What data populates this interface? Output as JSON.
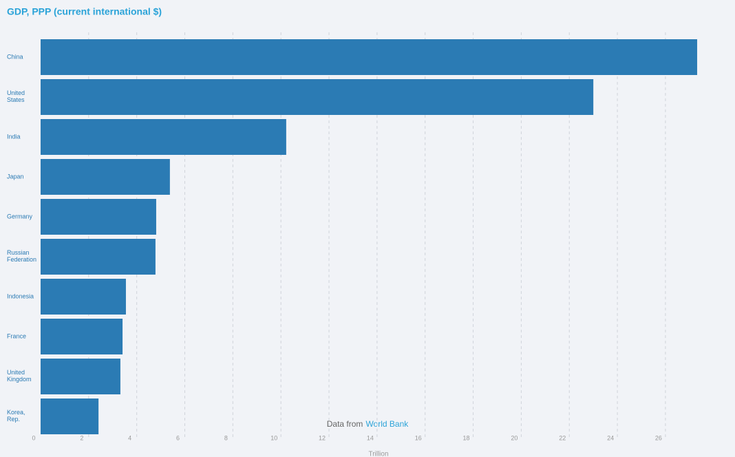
{
  "chart_data": {
    "type": "barh",
    "title": "GDP, PPP (current international $)",
    "categories": [
      "China",
      "United States",
      "India",
      "Japan",
      "Germany",
      "Russian Federation",
      "Indonesia",
      "France",
      "United Kingdom",
      "Korea, Rep."
    ],
    "values": [
      27.32,
      23.0,
      10.22,
      5.38,
      4.81,
      4.78,
      3.55,
      3.41,
      3.32,
      2.41
    ],
    "color": "#2b7bb4",
    "xlim": [
      0,
      28
    ],
    "xticks": [
      0,
      2,
      4,
      6,
      8,
      10,
      12,
      14,
      16,
      18,
      20,
      22,
      24,
      26
    ],
    "xlabel": "Trillion",
    "grid": true,
    "source_prefix": "Data from",
    "source_link": "World Bank"
  }
}
